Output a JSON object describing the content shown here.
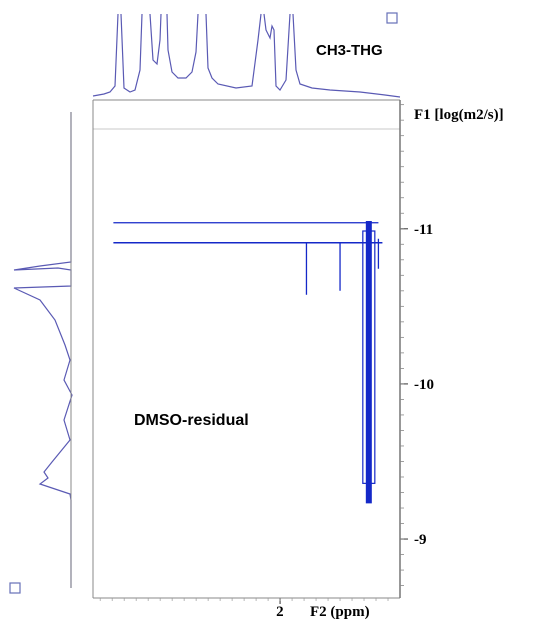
{
  "chart_data": {
    "type": "2D NMR contour (DOSY)",
    "title": "",
    "xlabel": "F2 (ppm)",
    "ylabel": "F1 [log(m2/s)]",
    "x_ticks": [
      {
        "value": 2,
        "label": "2"
      }
    ],
    "y_ticks": [
      {
        "value": -11,
        "label": "-11"
      },
      {
        "value": -10,
        "label": "-10"
      },
      {
        "value": -9,
        "label": "-9"
      }
    ],
    "xlim": [
      3.56,
      1.0
    ],
    "ylim": [
      -11.83,
      -8.62
    ],
    "grid": false,
    "annotations": [
      {
        "text": "CH3-THG",
        "position": "top-projection"
      },
      {
        "text": "DMSO-residual",
        "position": "lower-left"
      }
    ],
    "corner_markers": [
      "top-right",
      "bottom-left"
    ],
    "series": [
      {
        "name": "CH3-THG",
        "band": {
          "x_from": 1.18,
          "x_to": 3.34,
          "y": -11.0
        },
        "description_values": {
          "diffusion_log": -11.0
        }
      },
      {
        "name": "DMSO-residual",
        "streak": {
          "x": 1.26,
          "y_from": -11.05,
          "y_to": -9.23
        }
      }
    ],
    "colors": {
      "contour": "#1428c8",
      "projection": "#5a5ab4",
      "frame": "#888888"
    }
  }
}
